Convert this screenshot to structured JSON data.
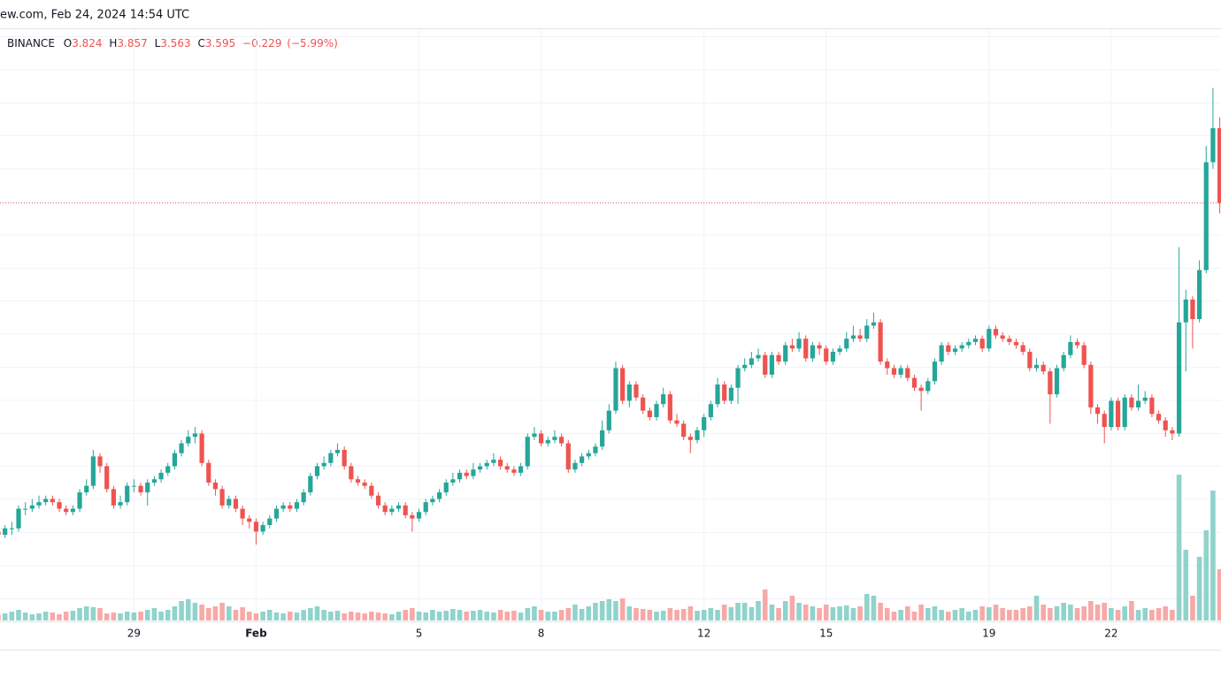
{
  "chart_data": {
    "type": "candlestick",
    "header": "ew.com, Feb 24, 2024 14:54 UTC",
    "exchange": "BINANCE",
    "legend_keys": [
      "O",
      "H",
      "L",
      "C"
    ],
    "change_label": "−0.229",
    "change_pct_label": "(−5.99%)",
    "up_color": "#26a69a",
    "down_color": "#ef5350",
    "volume_up_color": "#8fd3cc",
    "volume_down_color": "#f7a9a7",
    "ylim": [
      2.31,
      4.135
    ],
    "volume_ylim": [
      0,
      200
    ],
    "categories": [
      null,
      null,
      null,
      null,
      null,
      null,
      null,
      null,
      null,
      null,
      null,
      null,
      null,
      null,
      null,
      null,
      null,
      null,
      null,
      null,
      "29",
      null,
      null,
      null,
      null,
      null,
      null,
      null,
      null,
      null,
      null,
      null,
      null,
      null,
      null,
      null,
      null,
      null,
      "Feb",
      null,
      null,
      null,
      null,
      null,
      null,
      null,
      null,
      null,
      null,
      null,
      null,
      null,
      null,
      null,
      null,
      null,
      null,
      null,
      null,
      null,
      null,
      null,
      "5",
      null,
      null,
      null,
      null,
      null,
      null,
      null,
      null,
      null,
      null,
      null,
      null,
      null,
      null,
      null,
      null,
      null,
      "8",
      null,
      null,
      null,
      null,
      null,
      null,
      null,
      null,
      null,
      null,
      null,
      null,
      null,
      null,
      null,
      null,
      null,
      null,
      null,
      null,
      null,
      null,
      null,
      "12",
      null,
      null,
      null,
      null,
      null,
      null,
      null,
      null,
      null,
      null,
      null,
      null,
      null,
      null,
      null,
      null,
      null,
      "15",
      null,
      null,
      null,
      null,
      null,
      null,
      null,
      null,
      null,
      null,
      null,
      null,
      null,
      null,
      null,
      null,
      null,
      null,
      null,
      null,
      null,
      null,
      null,
      "19",
      null,
      null,
      null,
      null,
      null,
      null,
      null,
      null,
      null,
      null,
      null,
      null,
      null,
      null,
      null,
      null,
      null,
      "22",
      null,
      null,
      null,
      null,
      null,
      null,
      null,
      null,
      null,
      null,
      null,
      null,
      null,
      null,
      null,
      null
    ],
    "open": [
      2.59,
      2.58,
      2.6,
      2.6,
      2.66,
      2.66,
      2.67,
      2.68,
      2.69,
      2.68,
      2.66,
      2.65,
      2.66,
      2.71,
      2.73,
      2.82,
      2.79,
      2.72,
      2.67,
      2.68,
      2.73,
      2.73,
      2.71,
      2.74,
      2.75,
      2.77,
      2.79,
      2.83,
      2.86,
      2.88,
      2.89,
      2.8,
      2.74,
      2.72,
      2.67,
      2.69,
      2.66,
      2.63,
      2.62,
      2.59,
      2.61,
      2.63,
      2.66,
      2.67,
      2.66,
      2.68,
      2.71,
      2.76,
      2.79,
      2.8,
      2.83,
      2.84,
      2.79,
      2.75,
      2.74,
      2.73,
      2.7,
      2.67,
      2.65,
      2.66,
      2.67,
      2.64,
      2.63,
      2.65,
      2.68,
      2.69,
      2.71,
      2.74,
      2.75,
      2.77,
      2.76,
      2.78,
      2.79,
      2.8,
      2.81,
      2.79,
      2.78,
      2.77,
      2.79,
      2.88,
      2.89,
      2.86,
      2.87,
      2.88,
      2.86,
      2.78,
      2.8,
      2.82,
      2.83,
      2.85,
      2.9,
      2.96,
      3.09,
      2.99,
      3.04,
      3.0,
      2.96,
      2.94,
      2.98,
      3.01,
      2.93,
      2.92,
      2.88,
      2.87,
      2.9,
      2.94,
      2.98,
      3.04,
      2.99,
      3.03,
      3.09,
      3.1,
      3.12,
      3.13,
      3.07,
      3.13,
      3.11,
      3.16,
      3.15,
      3.18,
      3.12,
      3.16,
      3.15,
      3.11,
      3.14,
      3.15,
      3.18,
      3.19,
      3.18,
      3.22,
      3.23,
      3.11,
      3.09,
      3.07,
      3.09,
      3.06,
      3.03,
      3.02,
      3.05,
      3.11,
      3.16,
      3.14,
      3.15,
      3.16,
      3.17,
      3.18,
      3.15,
      3.21,
      3.19,
      3.18,
      3.17,
      3.16,
      3.14,
      3.09,
      3.1,
      3.08,
      3.01,
      3.09,
      3.13,
      3.17,
      3.16,
      3.1,
      2.97,
      2.95,
      2.91,
      2.99,
      2.91,
      3.0,
      2.97,
      2.99,
      3.0,
      2.95,
      2.93,
      2.9,
      2.89,
      3.23,
      3.3,
      3.24,
      3.39,
      3.72,
      3.824
    ],
    "high": [
      2.61,
      2.61,
      2.62,
      2.67,
      2.68,
      2.69,
      2.7,
      2.7,
      2.7,
      2.69,
      2.67,
      2.67,
      2.72,
      2.75,
      2.84,
      2.83,
      2.8,
      2.73,
      2.7,
      2.74,
      2.75,
      2.74,
      2.75,
      2.76,
      2.78,
      2.8,
      2.84,
      2.87,
      2.9,
      2.91,
      2.9,
      2.81,
      2.75,
      2.73,
      2.7,
      2.7,
      2.67,
      2.64,
      2.63,
      2.62,
      2.64,
      2.67,
      2.68,
      2.68,
      2.69,
      2.72,
      2.77,
      2.8,
      2.82,
      2.84,
      2.86,
      2.85,
      2.8,
      2.76,
      2.75,
      2.74,
      2.71,
      2.68,
      2.67,
      2.68,
      2.68,
      2.65,
      2.66,
      2.69,
      2.7,
      2.72,
      2.75,
      2.77,
      2.78,
      2.78,
      2.8,
      2.8,
      2.81,
      2.83,
      2.82,
      2.8,
      2.79,
      2.8,
      2.89,
      2.91,
      2.9,
      2.88,
      2.9,
      2.89,
      2.87,
      2.81,
      2.83,
      2.84,
      2.86,
      2.93,
      2.98,
      3.11,
      3.1,
      3.05,
      3.05,
      3.01,
      2.97,
      2.99,
      3.03,
      3.02,
      2.95,
      2.93,
      2.89,
      2.91,
      2.95,
      2.99,
      3.06,
      3.05,
      3.04,
      3.1,
      3.12,
      3.14,
      3.15,
      3.14,
      3.14,
      3.14,
      3.17,
      3.18,
      3.2,
      3.19,
      3.17,
      3.17,
      3.16,
      3.15,
      3.16,
      3.2,
      3.22,
      3.21,
      3.24,
      3.26,
      3.24,
      3.12,
      3.1,
      3.1,
      3.1,
      3.07,
      3.04,
      3.06,
      3.12,
      3.17,
      3.17,
      3.16,
      3.17,
      3.18,
      3.19,
      3.19,
      3.22,
      3.22,
      3.2,
      3.19,
      3.18,
      3.17,
      3.15,
      3.12,
      3.11,
      3.09,
      3.1,
      3.14,
      3.19,
      3.18,
      3.17,
      3.11,
      2.98,
      2.96,
      3.0,
      3.0,
      3.01,
      3.01,
      3.04,
      3.02,
      3.01,
      2.96,
      2.94,
      2.91,
      3.46,
      3.33,
      3.31,
      3.42,
      3.77,
      3.947,
      3.857
    ],
    "low": [
      2.56,
      2.57,
      2.58,
      2.59,
      2.64,
      2.65,
      2.66,
      2.67,
      2.67,
      2.65,
      2.64,
      2.64,
      2.65,
      2.7,
      2.72,
      2.77,
      2.71,
      2.66,
      2.66,
      2.67,
      2.71,
      2.7,
      2.67,
      2.73,
      2.74,
      2.76,
      2.78,
      2.82,
      2.85,
      2.86,
      2.79,
      2.73,
      2.7,
      2.66,
      2.66,
      2.65,
      2.61,
      2.6,
      2.55,
      2.58,
      2.6,
      2.62,
      2.65,
      2.65,
      2.65,
      2.67,
      2.7,
      2.75,
      2.78,
      2.79,
      2.82,
      2.78,
      2.74,
      2.73,
      2.72,
      2.69,
      2.66,
      2.64,
      2.64,
      2.65,
      2.63,
      2.59,
      2.62,
      2.64,
      2.67,
      2.68,
      2.7,
      2.73,
      2.74,
      2.75,
      2.75,
      2.77,
      2.78,
      2.79,
      2.78,
      2.77,
      2.76,
      2.76,
      2.78,
      2.87,
      2.85,
      2.85,
      2.86,
      2.85,
      2.77,
      2.77,
      2.79,
      2.81,
      2.82,
      2.84,
      2.89,
      2.95,
      2.98,
      2.97,
      2.99,
      2.95,
      2.93,
      2.93,
      2.97,
      2.92,
      2.91,
      2.87,
      2.83,
      2.86,
      2.88,
      2.93,
      2.97,
      2.98,
      2.98,
      2.98,
      3.08,
      3.09,
      3.11,
      3.06,
      3.06,
      3.1,
      3.1,
      3.14,
      3.14,
      3.11,
      3.11,
      3.13,
      3.1,
      3.1,
      3.13,
      3.14,
      3.17,
      3.17,
      3.17,
      3.21,
      3.1,
      3.07,
      3.06,
      3.06,
      3.05,
      3.02,
      2.96,
      3.01,
      3.04,
      3.1,
      3.13,
      3.13,
      3.14,
      3.15,
      3.16,
      3.14,
      3.14,
      3.18,
      3.17,
      3.16,
      3.15,
      3.13,
      3.08,
      3.08,
      3.07,
      2.92,
      3.0,
      3.08,
      3.12,
      3.15,
      3.09,
      2.95,
      2.92,
      2.86,
      2.9,
      2.9,
      2.9,
      2.96,
      2.96,
      2.98,
      2.94,
      2.92,
      2.88,
      2.87,
      2.88,
      3.08,
      3.15,
      3.23,
      3.38,
      3.7,
      3.563
    ],
    "close": [
      2.58,
      2.6,
      2.6,
      2.66,
      2.66,
      2.67,
      2.68,
      2.69,
      2.68,
      2.66,
      2.65,
      2.66,
      2.71,
      2.73,
      2.82,
      2.79,
      2.72,
      2.67,
      2.68,
      2.73,
      2.73,
      2.71,
      2.74,
      2.75,
      2.77,
      2.79,
      2.83,
      2.86,
      2.88,
      2.89,
      2.8,
      2.74,
      2.72,
      2.67,
      2.69,
      2.66,
      2.63,
      2.62,
      2.59,
      2.61,
      2.63,
      2.66,
      2.67,
      2.66,
      2.68,
      2.71,
      2.76,
      2.79,
      2.8,
      2.83,
      2.84,
      2.79,
      2.75,
      2.74,
      2.73,
      2.7,
      2.67,
      2.65,
      2.66,
      2.67,
      2.64,
      2.63,
      2.65,
      2.68,
      2.69,
      2.71,
      2.74,
      2.75,
      2.77,
      2.76,
      2.78,
      2.79,
      2.8,
      2.81,
      2.79,
      2.78,
      2.77,
      2.79,
      2.88,
      2.89,
      2.86,
      2.87,
      2.88,
      2.86,
      2.78,
      2.8,
      2.82,
      2.83,
      2.85,
      2.9,
      2.96,
      3.09,
      2.99,
      3.04,
      3.0,
      2.96,
      2.94,
      2.98,
      3.01,
      2.93,
      2.92,
      2.88,
      2.87,
      2.9,
      2.94,
      2.98,
      3.04,
      2.99,
      3.03,
      3.09,
      3.1,
      3.12,
      3.13,
      3.07,
      3.13,
      3.11,
      3.16,
      3.15,
      3.18,
      3.12,
      3.16,
      3.15,
      3.11,
      3.14,
      3.15,
      3.18,
      3.19,
      3.18,
      3.22,
      3.23,
      3.11,
      3.09,
      3.07,
      3.09,
      3.06,
      3.03,
      3.02,
      3.05,
      3.11,
      3.16,
      3.14,
      3.15,
      3.16,
      3.17,
      3.18,
      3.15,
      3.21,
      3.19,
      3.18,
      3.17,
      3.16,
      3.14,
      3.09,
      3.1,
      3.08,
      3.01,
      3.09,
      3.13,
      3.17,
      3.16,
      3.1,
      2.97,
      2.95,
      2.91,
      2.99,
      2.91,
      3.0,
      2.97,
      2.99,
      3.0,
      2.95,
      2.93,
      2.9,
      2.89,
      3.23,
      3.3,
      3.24,
      3.39,
      3.72,
      3.824,
      3.595
    ],
    "volume": [
      6,
      8,
      10,
      12,
      9,
      7,
      8,
      10,
      9,
      7,
      10,
      11,
      14,
      16,
      15,
      14,
      8,
      9,
      8,
      10,
      9,
      10,
      12,
      14,
      10,
      12,
      16,
      22,
      24,
      20,
      18,
      14,
      16,
      20,
      16,
      12,
      15,
      10,
      8,
      10,
      12,
      9,
      8,
      10,
      9,
      12,
      14,
      16,
      12,
      10,
      11,
      8,
      10,
      9,
      8,
      10,
      9,
      8,
      7,
      10,
      12,
      14,
      10,
      9,
      12,
      10,
      11,
      13,
      12,
      10,
      11,
      12,
      10,
      9,
      12,
      10,
      11,
      9,
      14,
      16,
      12,
      10,
      10,
      12,
      14,
      18,
      13,
      16,
      20,
      22,
      24,
      22,
      25,
      16,
      14,
      13,
      12,
      10,
      11,
      14,
      12,
      13,
      16,
      11,
      12,
      14,
      12,
      18,
      15,
      20,
      20,
      15,
      22,
      35,
      18,
      14,
      22,
      28,
      20,
      18,
      16,
      14,
      18,
      15,
      16,
      17,
      14,
      16,
      30,
      28,
      20,
      14,
      10,
      12,
      16,
      10,
      18,
      14,
      16,
      12,
      10,
      12,
      14,
      10,
      12,
      16,
      15,
      18,
      14,
      12,
      12,
      14,
      16,
      28,
      18,
      14,
      16,
      20,
      18,
      14,
      16,
      22,
      18,
      20,
      14,
      12,
      16,
      22,
      12,
      14,
      12,
      14,
      16,
      12,
      165,
      80,
      28,
      72,
      102,
      147,
      58
    ]
  }
}
